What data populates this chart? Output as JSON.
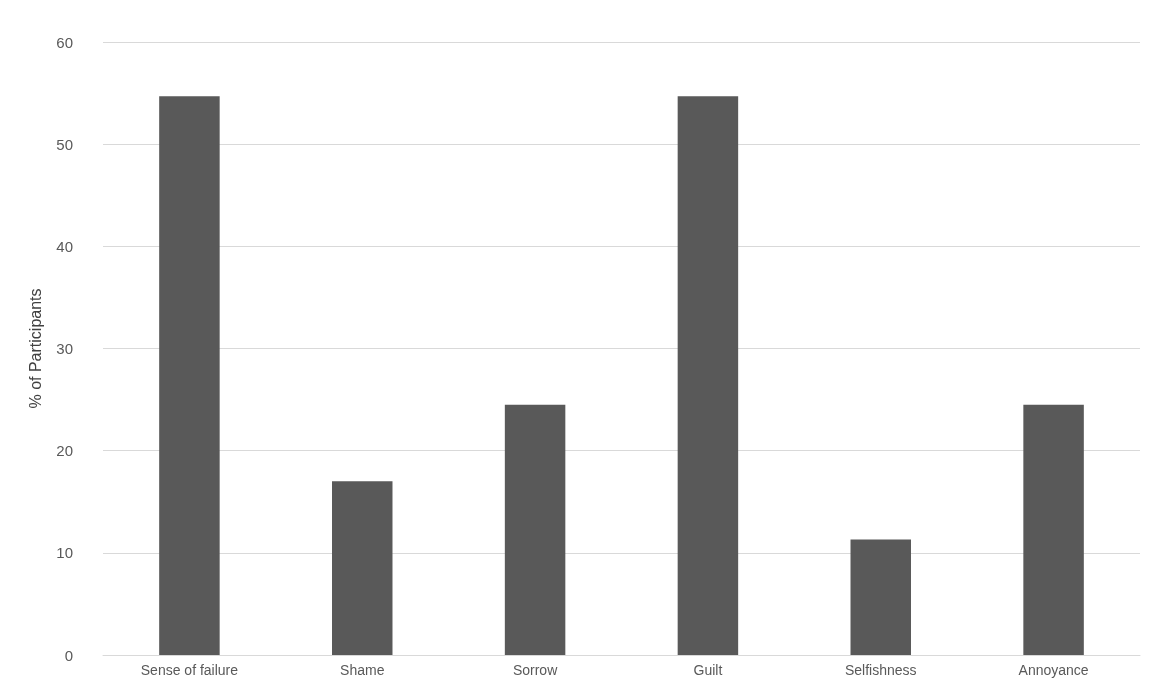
{
  "chart_data": {
    "type": "bar",
    "ylabel": "% of Participants",
    "categories": [
      "Sense of failure",
      "Shame",
      "Sorrow",
      "Guilt",
      "Selfishness",
      "Annoyance"
    ],
    "values": [
      54.7,
      17.0,
      24.5,
      54.7,
      11.3,
      24.5
    ],
    "color": "#595959",
    "ylim": [
      0,
      60
    ],
    "yticks": [
      0,
      10,
      20,
      30,
      40,
      50,
      60
    ],
    "grid": "y"
  }
}
